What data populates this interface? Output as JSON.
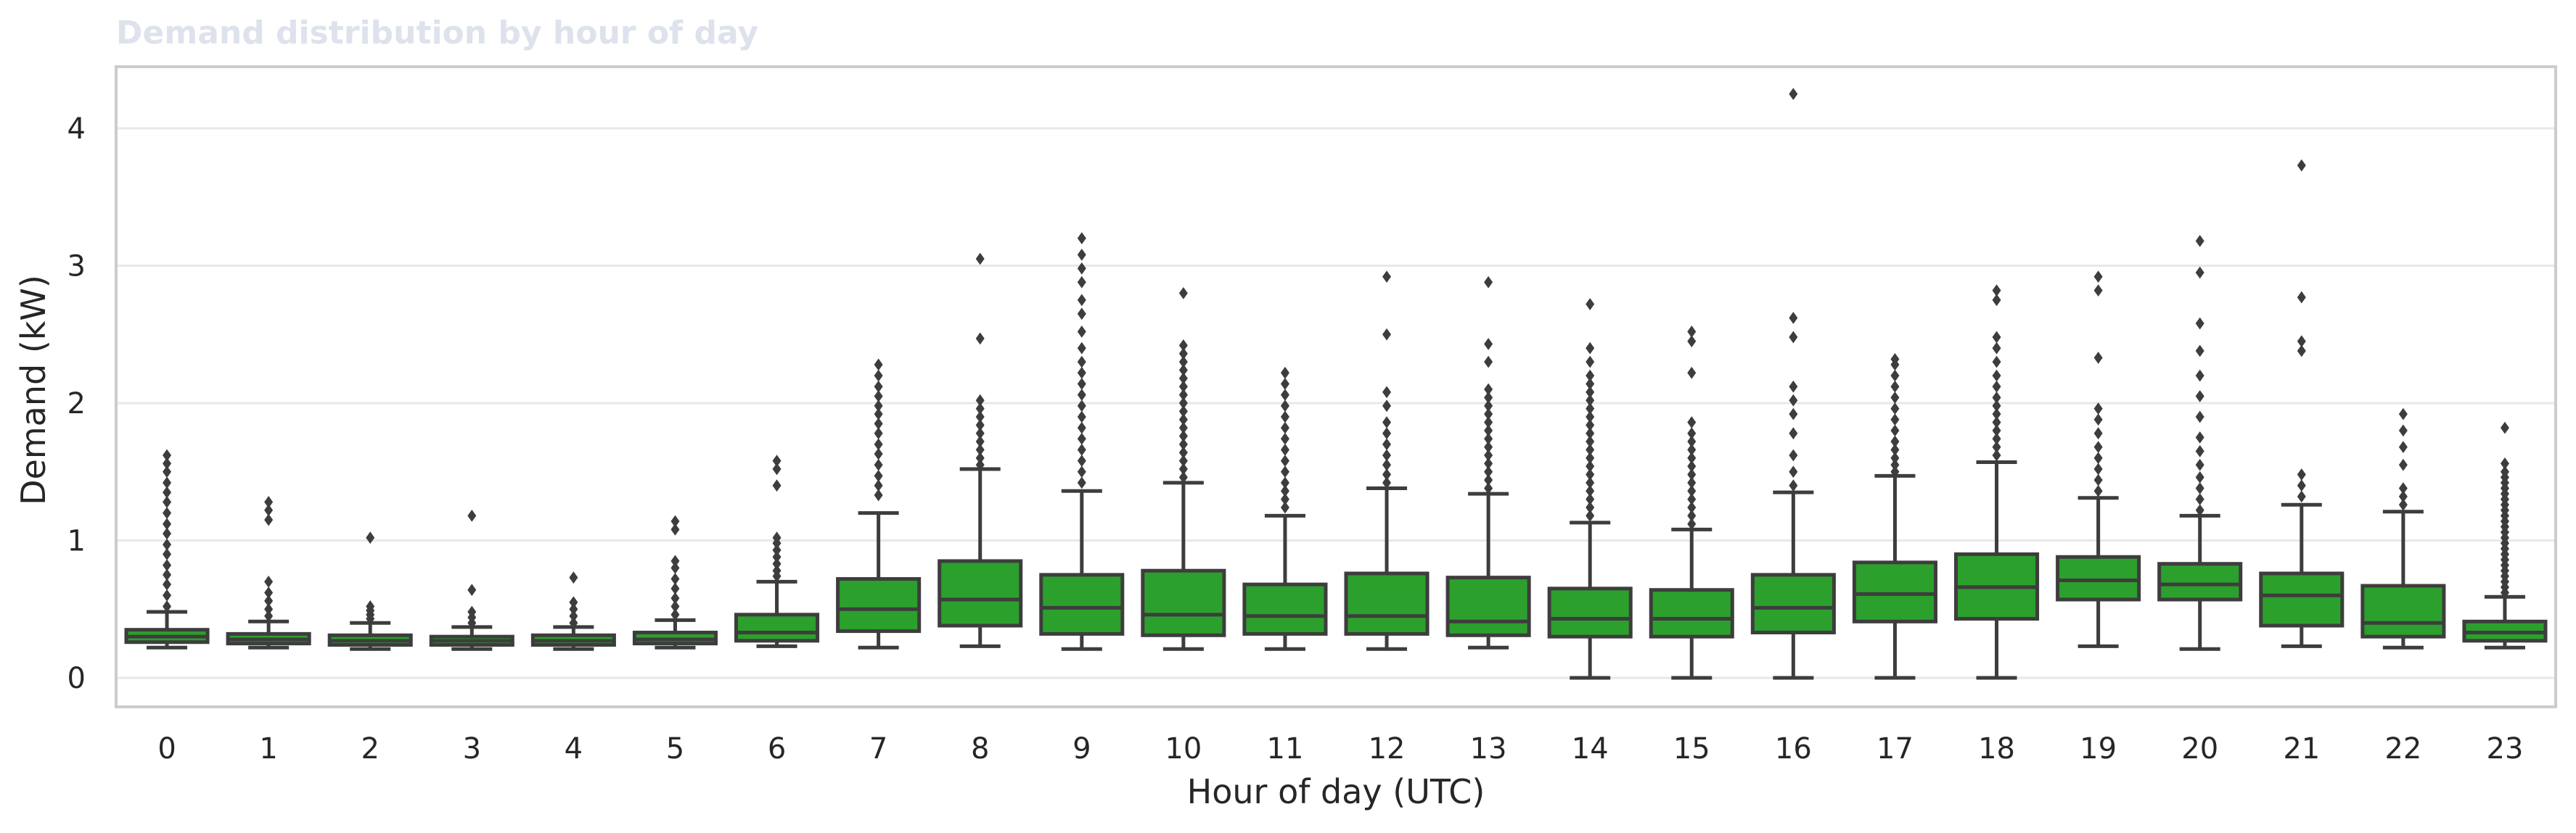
{
  "chart_data": {
    "type": "box",
    "title": "Demand distribution by hour of day",
    "xlabel": "Hour of day (UTC)",
    "ylabel": "Demand (kW)",
    "ylim": [
      -0.2,
      4.45
    ],
    "yticks": [
      0,
      1,
      2,
      3,
      4
    ],
    "grid": "horizontal",
    "colors": {
      "box": "#2ca02c",
      "line": "#3d3d3d",
      "grid": "#e8e8e8",
      "frame": "#cccccc"
    },
    "categories": [
      "0",
      "1",
      "2",
      "3",
      "4",
      "5",
      "6",
      "7",
      "8",
      "9",
      "10",
      "11",
      "12",
      "13",
      "14",
      "15",
      "16",
      "17",
      "18",
      "19",
      "20",
      "21",
      "22",
      "23"
    ],
    "boxes": [
      {
        "whislo": 0.22,
        "q1": 0.26,
        "med": 0.3,
        "q3": 0.35,
        "whishi": 0.48,
        "fliers": [
          0.52,
          0.6,
          0.68,
          0.75,
          0.82,
          0.9,
          0.97,
          1.05,
          1.12,
          1.2,
          1.28,
          1.35,
          1.42,
          1.5,
          1.56,
          1.62
        ]
      },
      {
        "whislo": 0.22,
        "q1": 0.25,
        "med": 0.28,
        "q3": 0.32,
        "whishi": 0.41,
        "fliers": [
          0.45,
          0.5,
          0.56,
          0.62,
          0.7,
          1.15,
          1.22,
          1.28
        ]
      },
      {
        "whislo": 0.21,
        "q1": 0.24,
        "med": 0.27,
        "q3": 0.31,
        "whishi": 0.4,
        "fliers": [
          0.43,
          0.46,
          0.49,
          0.52,
          1.02
        ]
      },
      {
        "whislo": 0.21,
        "q1": 0.24,
        "med": 0.27,
        "q3": 0.3,
        "whishi": 0.37,
        "fliers": [
          0.4,
          0.44,
          0.48,
          0.64,
          1.18
        ]
      },
      {
        "whislo": 0.21,
        "q1": 0.24,
        "med": 0.27,
        "q3": 0.31,
        "whishi": 0.37,
        "fliers": [
          0.4,
          0.45,
          0.5,
          0.55,
          0.73
        ]
      },
      {
        "whislo": 0.22,
        "q1": 0.25,
        "med": 0.28,
        "q3": 0.33,
        "whishi": 0.42,
        "fliers": [
          0.46,
          0.52,
          0.58,
          0.65,
          0.72,
          0.8,
          0.85,
          1.08,
          1.14
        ]
      },
      {
        "whislo": 0.23,
        "q1": 0.27,
        "med": 0.33,
        "q3": 0.46,
        "whishi": 0.7,
        "fliers": [
          0.74,
          0.78,
          0.83,
          0.88,
          0.93,
          0.98,
          1.02,
          1.4,
          1.52,
          1.58
        ]
      },
      {
        "whislo": 0.22,
        "q1": 0.34,
        "med": 0.5,
        "q3": 0.72,
        "whishi": 1.2,
        "fliers": [
          1.33,
          1.4,
          1.47,
          1.55,
          1.63,
          1.7,
          1.78,
          1.85,
          1.92,
          1.98,
          2.05,
          2.12,
          2.2,
          2.28
        ]
      },
      {
        "whislo": 0.23,
        "q1": 0.38,
        "med": 0.57,
        "q3": 0.85,
        "whishi": 1.52,
        "fliers": [
          1.55,
          1.6,
          1.66,
          1.72,
          1.78,
          1.84,
          1.9,
          1.96,
          2.02,
          2.47,
          3.05
        ]
      },
      {
        "whislo": 0.21,
        "q1": 0.32,
        "med": 0.51,
        "q3": 0.75,
        "whishi": 1.36,
        "fliers": [
          1.42,
          1.5,
          1.58,
          1.66,
          1.74,
          1.82,
          1.9,
          1.98,
          2.06,
          2.14,
          2.22,
          2.3,
          2.4,
          2.52,
          2.65,
          2.75,
          2.88,
          2.98,
          3.08,
          3.2
        ]
      },
      {
        "whislo": 0.21,
        "q1": 0.31,
        "med": 0.46,
        "q3": 0.78,
        "whishi": 1.42,
        "fliers": [
          1.46,
          1.52,
          1.58,
          1.64,
          1.7,
          1.76,
          1.82,
          1.88,
          1.94,
          2.0,
          2.06,
          2.12,
          2.18,
          2.24,
          2.3,
          2.36,
          2.42,
          2.8
        ]
      },
      {
        "whislo": 0.21,
        "q1": 0.32,
        "med": 0.45,
        "q3": 0.68,
        "whishi": 1.18,
        "fliers": [
          1.24,
          1.3,
          1.36,
          1.42,
          1.5,
          1.58,
          1.66,
          1.74,
          1.82,
          1.9,
          1.98,
          2.06,
          2.14,
          2.22
        ]
      },
      {
        "whislo": 0.21,
        "q1": 0.32,
        "med": 0.45,
        "q3": 0.76,
        "whishi": 1.38,
        "fliers": [
          1.42,
          1.48,
          1.55,
          1.62,
          1.7,
          1.78,
          1.86,
          1.98,
          2.08,
          2.5,
          2.92
        ]
      },
      {
        "whislo": 0.22,
        "q1": 0.31,
        "med": 0.41,
        "q3": 0.73,
        "whishi": 1.34,
        "fliers": [
          1.38,
          1.44,
          1.5,
          1.56,
          1.62,
          1.68,
          1.74,
          1.8,
          1.86,
          1.92,
          1.98,
          2.04,
          2.1,
          2.3,
          2.43,
          2.88
        ]
      },
      {
        "whislo": 0.0,
        "q1": 0.3,
        "med": 0.43,
        "q3": 0.65,
        "whishi": 1.13,
        "fliers": [
          1.18,
          1.24,
          1.3,
          1.36,
          1.42,
          1.48,
          1.54,
          1.6,
          1.66,
          1.72,
          1.78,
          1.84,
          1.9,
          1.96,
          2.02,
          2.08,
          2.14,
          2.2,
          2.3,
          2.4,
          2.72
        ]
      },
      {
        "whislo": 0.0,
        "q1": 0.3,
        "med": 0.43,
        "q3": 0.64,
        "whishi": 1.08,
        "fliers": [
          1.12,
          1.18,
          1.24,
          1.3,
          1.36,
          1.42,
          1.48,
          1.54,
          1.6,
          1.66,
          1.72,
          1.78,
          1.86,
          2.22,
          2.45,
          2.52
        ]
      },
      {
        "whislo": 0.0,
        "q1": 0.33,
        "med": 0.51,
        "q3": 0.75,
        "whishi": 1.35,
        "fliers": [
          1.4,
          1.5,
          1.62,
          1.78,
          1.92,
          2.02,
          2.12,
          2.48,
          2.62,
          4.25
        ]
      },
      {
        "whislo": 0.0,
        "q1": 0.41,
        "med": 0.61,
        "q3": 0.84,
        "whishi": 1.47,
        "fliers": [
          1.5,
          1.55,
          1.6,
          1.66,
          1.72,
          1.8,
          1.88,
          1.96,
          2.04,
          2.12,
          2.2,
          2.28,
          2.32
        ]
      },
      {
        "whislo": 0.0,
        "q1": 0.43,
        "med": 0.66,
        "q3": 0.9,
        "whishi": 1.57,
        "fliers": [
          1.62,
          1.68,
          1.74,
          1.8,
          1.86,
          1.92,
          1.98,
          2.04,
          2.12,
          2.2,
          2.3,
          2.4,
          2.48,
          2.75,
          2.82
        ]
      },
      {
        "whislo": 0.23,
        "q1": 0.57,
        "med": 0.71,
        "q3": 0.88,
        "whishi": 1.31,
        "fliers": [
          1.36,
          1.44,
          1.52,
          1.6,
          1.68,
          1.78,
          1.88,
          1.96,
          2.33,
          2.82,
          2.92
        ]
      },
      {
        "whislo": 0.21,
        "q1": 0.57,
        "med": 0.68,
        "q3": 0.83,
        "whishi": 1.18,
        "fliers": [
          1.22,
          1.3,
          1.38,
          1.46,
          1.55,
          1.65,
          1.75,
          1.9,
          2.05,
          2.2,
          2.38,
          2.58,
          2.95,
          3.18
        ]
      },
      {
        "whislo": 0.23,
        "q1": 0.38,
        "med": 0.6,
        "q3": 0.76,
        "whishi": 1.26,
        "fliers": [
          1.32,
          1.4,
          1.48,
          2.38,
          2.45,
          2.77,
          3.73
        ]
      },
      {
        "whislo": 0.22,
        "q1": 0.3,
        "med": 0.4,
        "q3": 0.67,
        "whishi": 1.21,
        "fliers": [
          1.26,
          1.32,
          1.38,
          1.55,
          1.68,
          1.8,
          1.92
        ]
      },
      {
        "whislo": 0.22,
        "q1": 0.27,
        "med": 0.33,
        "q3": 0.41,
        "whishi": 0.59,
        "fliers": [
          0.62,
          0.66,
          0.7,
          0.74,
          0.78,
          0.82,
          0.86,
          0.9,
          0.94,
          0.98,
          1.02,
          1.06,
          1.1,
          1.14,
          1.18,
          1.22,
          1.26,
          1.3,
          1.34,
          1.38,
          1.42,
          1.46,
          1.5,
          1.56,
          1.82
        ]
      }
    ]
  }
}
